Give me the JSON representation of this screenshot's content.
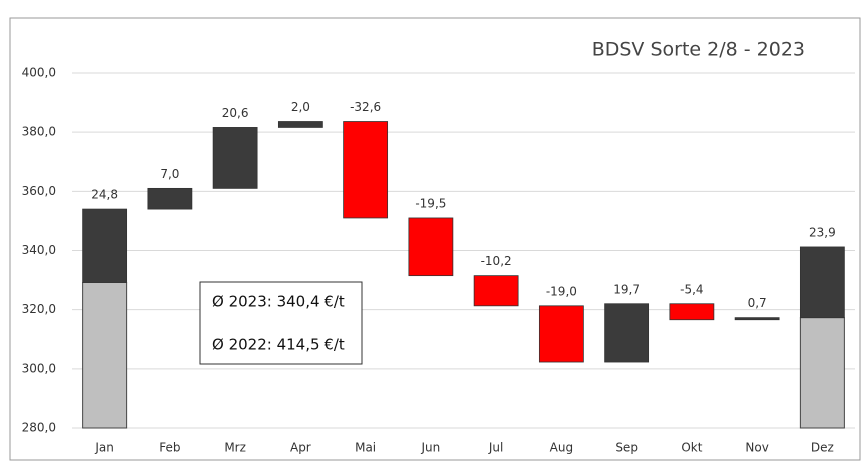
{
  "chart_data": {
    "type": "waterfall",
    "title": "BDSV Sorte 2/8 - 2023",
    "categories": [
      "Jan",
      "Feb",
      "Mrz",
      "Apr",
      "Mai",
      "Jun",
      "Jul",
      "Aug",
      "Sep",
      "Okt",
      "Nov",
      "Dez"
    ],
    "series": [
      {
        "name": "base",
        "color": "#bfbfbf",
        "values": [
          329.2,
          null,
          null,
          null,
          null,
          null,
          null,
          null,
          null,
          null,
          null,
          317.3
        ]
      },
      {
        "name": "change",
        "values": [
          24.8,
          7.0,
          20.6,
          2.0,
          -32.6,
          -19.5,
          -10.2,
          -19.0,
          19.7,
          -5.4,
          0.7,
          23.9
        ],
        "value_labels": [
          "24,8",
          "7,0",
          "20,6",
          "2,0",
          "-32,6",
          "-19,5",
          "-10,2",
          "-19,0",
          "19,7",
          "-5,4",
          "0,7",
          "23,9"
        ]
      }
    ],
    "increase_color": "#3b3b3b",
    "decrease_color": "#ff0000",
    "ylim": [
      280,
      400
    ],
    "yticks": [
      {
        "value": 280,
        "label": "280,0"
      },
      {
        "value": 300,
        "label": "300,0"
      },
      {
        "value": 320,
        "label": "320,0"
      },
      {
        "value": 340,
        "label": "340,0"
      },
      {
        "value": 360,
        "label": "360,0"
      },
      {
        "value": 380,
        "label": "380,0"
      },
      {
        "value": 400,
        "label": "400,0"
      }
    ],
    "grid": true,
    "annotations": [
      "Ø 2023: 340,4 €/t",
      "Ø 2022: 414,5 €/t"
    ]
  }
}
